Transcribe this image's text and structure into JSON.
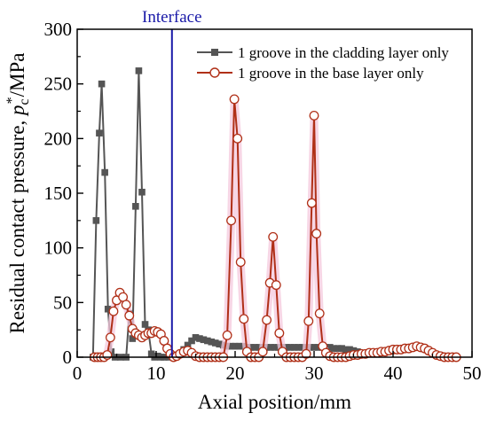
{
  "chart_data": {
    "type": "line",
    "xlabel": "Axial position/mm",
    "ylabel": {
      "prefix": "Residual contact pressure, ",
      "symbol": "p",
      "subscript": "c",
      "superscript": "*",
      "suffix": "/MPa"
    },
    "xlim": [
      0,
      50
    ],
    "ylim": [
      0,
      300
    ],
    "xticks": [
      0,
      10,
      20,
      30,
      40,
      50
    ],
    "yticks": [
      0,
      50,
      100,
      150,
      200,
      250,
      300
    ],
    "grid": false,
    "legend_position": "top-right",
    "annotations": [
      {
        "text": "Interface",
        "x": 12,
        "type": "vertical-line",
        "color": "#1a1aa8"
      }
    ],
    "series": [
      {
        "name": "1 groove in the cladding layer only",
        "color": "#555555",
        "marker": "square-filled",
        "points": [
          [
            2.0,
            0
          ],
          [
            2.4,
            125
          ],
          [
            2.8,
            205
          ],
          [
            3.1,
            250
          ],
          [
            3.5,
            169
          ],
          [
            3.9,
            44
          ],
          [
            4.3,
            5
          ],
          [
            4.8,
            0
          ],
          [
            5.5,
            0
          ],
          [
            6.2,
            0
          ],
          [
            6.6,
            40
          ],
          [
            7.0,
            17
          ],
          [
            7.4,
            138
          ],
          [
            7.8,
            262
          ],
          [
            8.2,
            151
          ],
          [
            8.6,
            30
          ],
          [
            9.0,
            25
          ],
          [
            9.4,
            3
          ],
          [
            9.8,
            0
          ],
          [
            10.2,
            1
          ],
          [
            10.6,
            0
          ],
          [
            11.0,
            0
          ],
          [
            11.6,
            0
          ],
          [
            12.0,
            1
          ],
          [
            12.5,
            2
          ],
          [
            13.0,
            3
          ],
          [
            13.5,
            7
          ],
          [
            14.0,
            11
          ],
          [
            14.5,
            15
          ],
          [
            15.0,
            18
          ],
          [
            15.5,
            17
          ],
          [
            16.0,
            16
          ],
          [
            16.5,
            15
          ],
          [
            17.0,
            14
          ],
          [
            17.5,
            13
          ],
          [
            18.0,
            12
          ],
          [
            18.5,
            11
          ],
          [
            19.0,
            10
          ],
          [
            19.5,
            10
          ],
          [
            20.0,
            10
          ],
          [
            20.5,
            10
          ],
          [
            21.0,
            10
          ],
          [
            21.5,
            9
          ],
          [
            22.0,
            9
          ],
          [
            22.5,
            9
          ],
          [
            23.0,
            9
          ],
          [
            23.5,
            9
          ],
          [
            24.0,
            9
          ],
          [
            24.5,
            9
          ],
          [
            25.0,
            9
          ],
          [
            25.5,
            9
          ],
          [
            26.0,
            9
          ],
          [
            26.5,
            9
          ],
          [
            27.0,
            9
          ],
          [
            27.5,
            9
          ],
          [
            28.0,
            9
          ],
          [
            28.5,
            9
          ],
          [
            29.0,
            9
          ],
          [
            29.5,
            9
          ],
          [
            30.0,
            9
          ],
          [
            30.5,
            9
          ],
          [
            31.0,
            9
          ],
          [
            31.5,
            9
          ],
          [
            32.0,
            9
          ],
          [
            32.5,
            8
          ],
          [
            33.0,
            8
          ],
          [
            33.5,
            8
          ],
          [
            34.0,
            7
          ],
          [
            34.5,
            7
          ],
          [
            35.0,
            6
          ],
          [
            35.5,
            5
          ]
        ]
      },
      {
        "name": "1 groove in the base layer only",
        "color": "#b03018",
        "marker": "circle-open",
        "highlight": "#f4c8dc",
        "points": [
          [
            2.2,
            0
          ],
          [
            2.6,
            0
          ],
          [
            3.0,
            0
          ],
          [
            3.4,
            0
          ],
          [
            3.8,
            2
          ],
          [
            4.2,
            18
          ],
          [
            4.6,
            42
          ],
          [
            5.0,
            52
          ],
          [
            5.4,
            59
          ],
          [
            5.8,
            55
          ],
          [
            6.2,
            48
          ],
          [
            6.6,
            38
          ],
          [
            7.0,
            26
          ],
          [
            7.4,
            22
          ],
          [
            7.8,
            20
          ],
          [
            8.2,
            18
          ],
          [
            8.6,
            20
          ],
          [
            9.0,
            22
          ],
          [
            9.4,
            22
          ],
          [
            9.8,
            24
          ],
          [
            10.2,
            23
          ],
          [
            10.6,
            21
          ],
          [
            11.0,
            15
          ],
          [
            11.4,
            8
          ],
          [
            11.8,
            3
          ],
          [
            12.2,
            0
          ],
          [
            12.6,
            1
          ],
          [
            13.0,
            3
          ],
          [
            13.5,
            5
          ],
          [
            14.0,
            6
          ],
          [
            14.5,
            4
          ],
          [
            15.0,
            1
          ],
          [
            15.5,
            0
          ],
          [
            16.0,
            0
          ],
          [
            16.5,
            0
          ],
          [
            17.0,
            0
          ],
          [
            17.5,
            0
          ],
          [
            18.0,
            0
          ],
          [
            18.5,
            0
          ],
          [
            19.0,
            20
          ],
          [
            19.5,
            125
          ],
          [
            19.9,
            236
          ],
          [
            20.3,
            200
          ],
          [
            20.7,
            87
          ],
          [
            21.1,
            35
          ],
          [
            21.5,
            5
          ],
          [
            22.0,
            0
          ],
          [
            22.5,
            0
          ],
          [
            23.0,
            0
          ],
          [
            23.5,
            5
          ],
          [
            24.0,
            34
          ],
          [
            24.4,
            68
          ],
          [
            24.8,
            110
          ],
          [
            25.2,
            66
          ],
          [
            25.6,
            22
          ],
          [
            26.0,
            5
          ],
          [
            26.5,
            0
          ],
          [
            27.0,
            0
          ],
          [
            27.5,
            0
          ],
          [
            28.0,
            0
          ],
          [
            28.5,
            0
          ],
          [
            29.0,
            3
          ],
          [
            29.3,
            33
          ],
          [
            29.7,
            141
          ],
          [
            30.0,
            221
          ],
          [
            30.3,
            113
          ],
          [
            30.7,
            40
          ],
          [
            31.1,
            10
          ],
          [
            31.5,
            4
          ],
          [
            32.0,
            1
          ],
          [
            32.5,
            0
          ],
          [
            33.0,
            0
          ],
          [
            33.5,
            0
          ],
          [
            34.0,
            0
          ],
          [
            34.5,
            1
          ],
          [
            35.0,
            2
          ],
          [
            35.5,
            2
          ],
          [
            36.0,
            3
          ],
          [
            36.5,
            3
          ],
          [
            37.0,
            4
          ],
          [
            37.5,
            4
          ],
          [
            38.0,
            4
          ],
          [
            38.5,
            5
          ],
          [
            39.0,
            5
          ],
          [
            39.5,
            6
          ],
          [
            40.0,
            7
          ],
          [
            40.5,
            7
          ],
          [
            41.0,
            7
          ],
          [
            41.5,
            8
          ],
          [
            42.0,
            8
          ],
          [
            42.5,
            9
          ],
          [
            43.0,
            10
          ],
          [
            43.5,
            9
          ],
          [
            44.0,
            8
          ],
          [
            44.5,
            6
          ],
          [
            45.0,
            4
          ],
          [
            45.5,
            2
          ],
          [
            46.0,
            1
          ],
          [
            46.5,
            0
          ],
          [
            47.0,
            0
          ],
          [
            47.5,
            0
          ],
          [
            48.0,
            0
          ]
        ]
      }
    ]
  }
}
